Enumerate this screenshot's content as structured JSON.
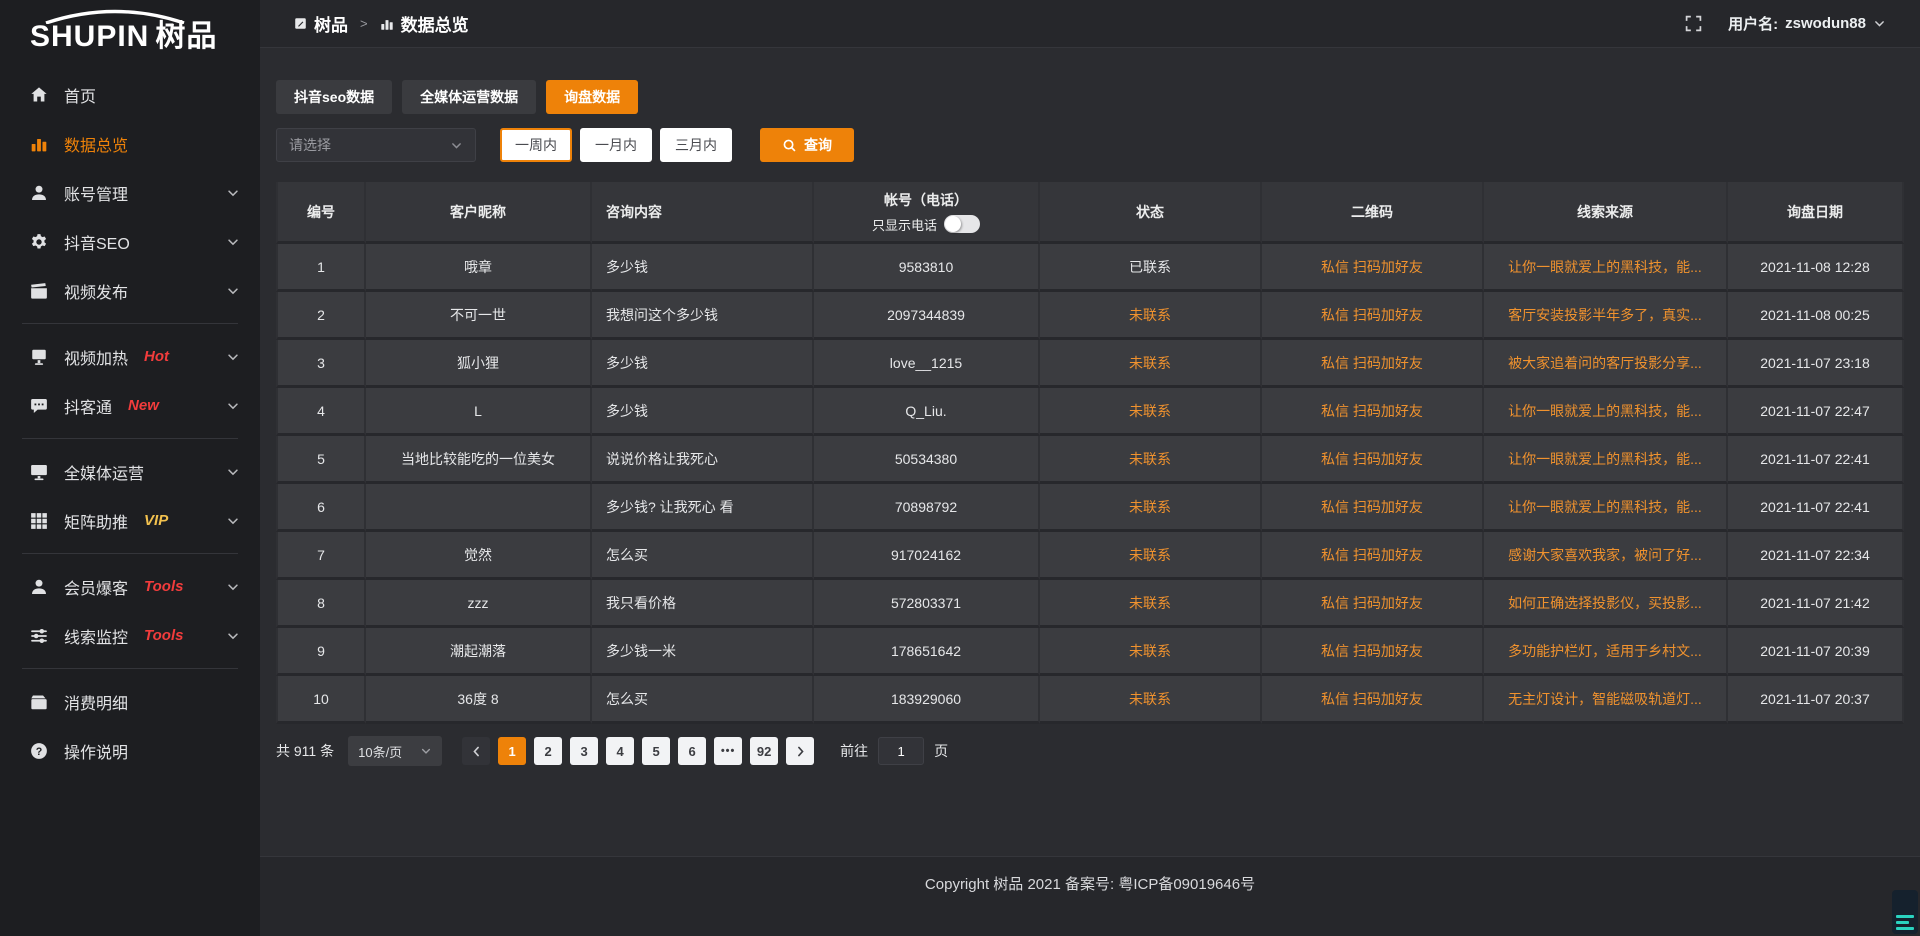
{
  "brand": {
    "logo_en": "SHUPIN",
    "logo_cn": "树品"
  },
  "header": {
    "breadcrumb_root": "树品",
    "breadcrumb_sep": ">",
    "breadcrumb_current": "数据总览",
    "username_label": "用户名:",
    "username": "zswodun88"
  },
  "sidebar": {
    "items": [
      {
        "id": "home",
        "icon": "home",
        "label": "首页"
      },
      {
        "id": "data-overview",
        "icon": "chart",
        "label": "数据总览",
        "active": true
      },
      {
        "id": "account-manage",
        "icon": "user",
        "label": "账号管理",
        "chevron": true
      },
      {
        "id": "douyin-seo",
        "icon": "gear",
        "label": "抖音SEO",
        "chevron": true
      },
      {
        "id": "video-publish",
        "icon": "video",
        "label": "视频发布",
        "chevron": true
      },
      {
        "divider": true
      },
      {
        "id": "video-heat",
        "icon": "screen",
        "label": "视频加热",
        "badge": "Hot",
        "badge_color": "red",
        "chevron": true
      },
      {
        "id": "douketong",
        "icon": "chat",
        "label": "抖客通",
        "badge": "New",
        "badge_color": "red",
        "chevron": true
      },
      {
        "divider": true
      },
      {
        "id": "media-ops",
        "icon": "monitor",
        "label": "全媒体运营",
        "chevron": true
      },
      {
        "id": "matrix-boost",
        "icon": "grid",
        "label": "矩阵助推",
        "badge": "VIP",
        "badge_color": "gold",
        "chevron": true
      },
      {
        "divider": true
      },
      {
        "id": "member-baoke",
        "icon": "member",
        "label": "会员爆客",
        "badge": "Tools",
        "badge_color": "red",
        "chevron": true
      },
      {
        "id": "lead-monitor",
        "icon": "sliders",
        "label": "线索监控",
        "badge": "Tools",
        "badge_color": "red",
        "chevron": true
      },
      {
        "divider": true
      },
      {
        "id": "consume-detail",
        "icon": "wallet",
        "label": "消费明细"
      },
      {
        "id": "help",
        "icon": "question",
        "label": "操作说明"
      }
    ]
  },
  "tabs": [
    {
      "id": "douyin-seo-data",
      "label": "抖音seo数据"
    },
    {
      "id": "media-ops-data",
      "label": "全媒体运营数据"
    },
    {
      "id": "inquiry-data",
      "label": "询盘数据",
      "active": true
    }
  ],
  "filters": {
    "select_placeholder": "请选择",
    "ranges": [
      {
        "label": "一周内",
        "selected": true
      },
      {
        "label": "一月内",
        "selected": false
      },
      {
        "label": "三月内",
        "selected": false
      }
    ],
    "search_label": "查询"
  },
  "table": {
    "headers": [
      "编号",
      "客户昵称",
      "咨询内容",
      "帐号（电话）",
      "状态",
      "二维码",
      "线索来源",
      "询盘日期"
    ],
    "phone_toggle_label": "只显示电话",
    "rows": [
      {
        "no": "1",
        "nickname": "哦章",
        "content": "多少钱",
        "account": "9583810",
        "status": "已联系",
        "contacted": true,
        "qrcode": "私信 扫码加好友",
        "source": "让你一眼就爱上的黑科技，能...",
        "date": "2021-11-08 12:28"
      },
      {
        "no": "2",
        "nickname": "不可一世",
        "content": "我想问这个多少钱",
        "account": "2097344839",
        "status": "未联系",
        "contacted": false,
        "qrcode": "私信 扫码加好友",
        "source": "客厅安装投影半年多了，真实...",
        "date": "2021-11-08 00:25"
      },
      {
        "no": "3",
        "nickname": "狐小狸",
        "content": "多少钱",
        "account": "love__1215",
        "status": "未联系",
        "contacted": false,
        "qrcode": "私信 扫码加好友",
        "source": "被大家追着问的客厅投影分享...",
        "date": "2021-11-07 23:18"
      },
      {
        "no": "4",
        "nickname": "L",
        "content": "多少钱",
        "account": "Q_Liu.",
        "status": "未联系",
        "contacted": false,
        "qrcode": "私信 扫码加好友",
        "source": "让你一眼就爱上的黑科技，能...",
        "date": "2021-11-07 22:47"
      },
      {
        "no": "5",
        "nickname": "当地比较能吃的一位美女",
        "content": "说说价格让我死心",
        "account": "50534380",
        "status": "未联系",
        "contacted": false,
        "qrcode": "私信 扫码加好友",
        "source": "让你一眼就爱上的黑科技，能...",
        "date": "2021-11-07 22:41"
      },
      {
        "no": "6",
        "nickname": "",
        "content": "多少钱? 让我死心 看",
        "account": "70898792",
        "status": "未联系",
        "contacted": false,
        "qrcode": "私信 扫码加好友",
        "source": "让你一眼就爱上的黑科技，能...",
        "date": "2021-11-07 22:41"
      },
      {
        "no": "7",
        "nickname": "觉然",
        "content": "怎么买",
        "account": "917024162",
        "status": "未联系",
        "contacted": false,
        "qrcode": "私信 扫码加好友",
        "source": "感谢大家喜欢我家，被问了好...",
        "date": "2021-11-07 22:34"
      },
      {
        "no": "8",
        "nickname": "zzz",
        "content": "我只看价格",
        "account": "572803371",
        "status": "未联系",
        "contacted": false,
        "qrcode": "私信 扫码加好友",
        "source": "如何正确选择投影仪，买投影...",
        "date": "2021-11-07 21:42"
      },
      {
        "no": "9",
        "nickname": "潮起潮落",
        "content": "多少钱一米",
        "account": "178651642",
        "status": "未联系",
        "contacted": false,
        "qrcode": "私信 扫码加好友",
        "source": "多功能护栏灯，适用于乡村文...",
        "date": "2021-11-07 20:39"
      },
      {
        "no": "10",
        "nickname": "36度 8",
        "content": "怎么买",
        "account": "183929060",
        "status": "未联系",
        "contacted": false,
        "qrcode": "私信 扫码加好友",
        "source": "无主灯设计，智能磁吸轨道灯...",
        "date": "2021-11-07 20:37"
      }
    ]
  },
  "pagination": {
    "total_label": "共 911 条",
    "page_size": "10条/页",
    "pages": [
      {
        "label": "1",
        "active": true
      },
      {
        "label": "2"
      },
      {
        "label": "3"
      },
      {
        "label": "4"
      },
      {
        "label": "5"
      },
      {
        "label": "6"
      },
      {
        "label": "•••",
        "more": true
      },
      {
        "label": "92"
      }
    ],
    "goto_label": "前往",
    "goto_value": "1",
    "goto_suffix": "页"
  },
  "footer": {
    "copyright": "Copyright 树品 2021 备案号: 粤ICP备09019646号"
  },
  "colors": {
    "accent": "#ee8209",
    "link": "#f0922e",
    "badge_red": "#f23c3c",
    "badge_gold": "#f2c14e"
  }
}
